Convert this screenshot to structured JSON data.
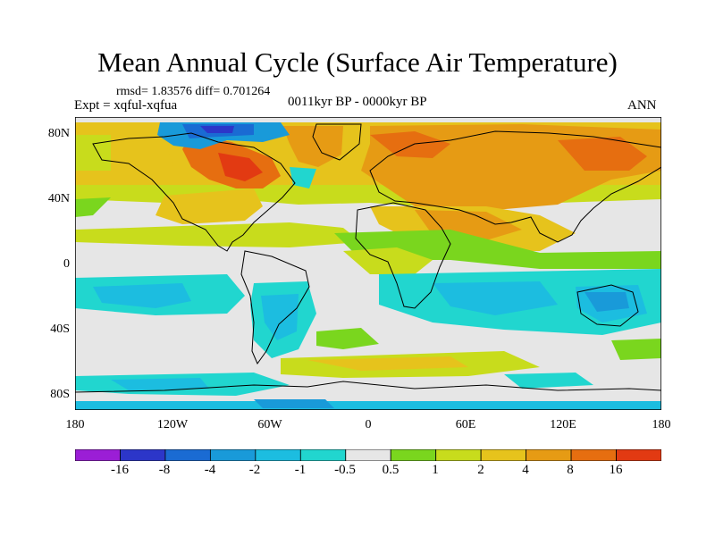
{
  "title": "Mean Annual Cycle (Surface Air Temperature)",
  "stats": "rmsd= 1.83576 diff= 0.701264",
  "experiment": "Expt = xqful-xqfua",
  "period": "0011kyr BP - 0000kyr BP",
  "season": "ANN",
  "lat_labels": [
    "80N",
    "40N",
    "0",
    "40S",
    "80S"
  ],
  "lon_labels": [
    "180",
    "120W",
    "60W",
    "0",
    "60E",
    "120E",
    "180"
  ],
  "colorbar": {
    "labels": [
      "-16",
      "-8",
      "-4",
      "-2",
      "-1",
      "-0.5",
      "0.5",
      "1",
      "2",
      "4",
      "8",
      "16"
    ],
    "colors": [
      "#9b1ed6",
      "#2c36c9",
      "#1a6bd3",
      "#199ad9",
      "#1cbde0",
      "#21d6cf",
      "#e6e6e6",
      "#7ad61e",
      "#c8dc1c",
      "#e6c31c",
      "#e69b14",
      "#e66e10",
      "#e23a12"
    ]
  }
}
